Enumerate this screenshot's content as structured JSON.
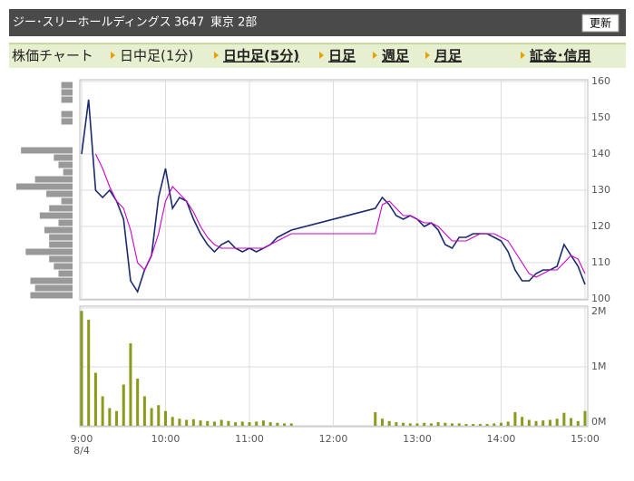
{
  "header": {
    "title": "ジー･スリーホールディングス",
    "code": "3647",
    "market": "東京 2部",
    "button": "更新"
  },
  "tabs": {
    "label": "株価チャート",
    "items": [
      "日中足(1分)",
      "日中足(5分)",
      "日足",
      "週足",
      "月足",
      "証金･信用"
    ]
  },
  "chart_data": [
    {
      "type": "line",
      "x": [
        "9:00",
        "9:05",
        "9:10",
        "9:15",
        "9:20",
        "9:25",
        "9:30",
        "9:35",
        "9:40",
        "9:45",
        "9:50",
        "9:55",
        "10:00",
        "10:05",
        "10:10",
        "10:15",
        "10:20",
        "10:25",
        "10:30",
        "10:35",
        "10:40",
        "10:45",
        "10:50",
        "10:55",
        "11:00",
        "11:05",
        "11:10",
        "11:15",
        "11:20",
        "11:25",
        "11:30",
        "12:30",
        "12:35",
        "12:40",
        "12:45",
        "12:50",
        "12:55",
        "13:00",
        "13:05",
        "13:10",
        "13:15",
        "13:20",
        "13:25",
        "13:30",
        "13:35",
        "13:40",
        "13:45",
        "13:50",
        "13:55",
        "14:00",
        "14:05",
        "14:10",
        "14:15",
        "14:20",
        "14:25",
        "14:30",
        "14:35",
        "14:40",
        "14:45",
        "14:50",
        "14:55",
        "15:00"
      ],
      "series": [
        {
          "color": "#1a2a6c",
          "values": [
            140,
            155,
            130,
            128,
            130,
            127,
            122,
            105,
            102,
            108,
            112,
            128,
            136,
            125,
            128,
            127,
            122,
            118,
            115,
            113,
            115,
            116,
            114,
            113,
            114,
            113,
            114,
            115,
            117,
            118,
            119,
            125,
            128,
            126,
            123,
            122,
            123,
            122,
            120,
            121,
            119,
            115,
            114,
            117,
            117,
            118,
            118,
            118,
            117,
            116,
            113,
            108,
            105,
            105,
            107,
            108,
            108,
            109,
            115,
            112,
            109,
            104
          ]
        },
        {
          "color": "#cc00cc",
          "values": [
            null,
            null,
            140,
            136,
            131,
            127,
            125,
            119,
            110,
            108,
            112,
            118,
            127,
            131,
            129,
            127,
            124,
            120,
            117,
            115,
            114,
            114,
            114,
            114,
            114,
            114,
            114,
            115,
            116,
            117,
            118,
            118,
            126,
            127,
            125,
            123,
            123,
            122,
            121,
            121,
            120,
            118,
            116,
            116,
            116,
            117,
            118,
            118,
            118,
            117,
            116,
            113,
            110,
            107,
            106,
            107,
            108,
            108,
            110,
            112,
            111,
            107
          ]
        }
      ],
      "xlim": [
        "9:00",
        "15:00"
      ],
      "ylim": [
        100,
        160
      ],
      "yticks": [
        100,
        110,
        120,
        130,
        140,
        150,
        160
      ],
      "grid": true
    },
    {
      "type": "bar",
      "x": [
        "9:00",
        "9:05",
        "9:10",
        "9:15",
        "9:20",
        "9:25",
        "9:30",
        "9:35",
        "9:40",
        "9:45",
        "9:50",
        "9:55",
        "10:00",
        "10:05",
        "10:10",
        "10:15",
        "10:20",
        "10:25",
        "10:30",
        "10:35",
        "10:40",
        "10:45",
        "10:50",
        "10:55",
        "11:00",
        "11:05",
        "11:10",
        "11:15",
        "11:20",
        "11:25",
        "11:30",
        "12:30",
        "12:35",
        "12:40",
        "12:45",
        "12:50",
        "12:55",
        "13:00",
        "13:05",
        "13:10",
        "13:15",
        "13:20",
        "13:25",
        "13:30",
        "13:35",
        "13:40",
        "13:45",
        "13:50",
        "13:55",
        "14:00",
        "14:05",
        "14:10",
        "14:15",
        "14:20",
        "14:25",
        "14:30",
        "14:35",
        "14:40",
        "14:45",
        "14:50",
        "14:55",
        "15:00"
      ],
      "values": [
        1950000,
        1800000,
        900000,
        500000,
        300000,
        250000,
        700000,
        1400000,
        800000,
        500000,
        300000,
        350000,
        250000,
        150000,
        120000,
        100000,
        110000,
        90000,
        80000,
        70000,
        100000,
        80000,
        60000,
        70000,
        60000,
        70000,
        90000,
        60000,
        50000,
        40000,
        40000,
        230000,
        120000,
        80000,
        60000,
        50000,
        40000,
        40000,
        50000,
        40000,
        60000,
        50000,
        40000,
        40000,
        30000,
        30000,
        30000,
        30000,
        40000,
        50000,
        70000,
        230000,
        150000,
        100000,
        80000,
        90000,
        100000,
        120000,
        220000,
        130000,
        80000,
        250000
      ],
      "color": "#8a9a1a",
      "xlim": [
        "9:00",
        "15:00"
      ],
      "xticks": [
        "9:00",
        "10:00",
        "11:00",
        "12:00",
        "13:00",
        "14:00",
        "15:00"
      ],
      "date": "8/4",
      "ylim": [
        0,
        2000000
      ],
      "yticks": [
        {
          "value": 0,
          "label": "0M"
        },
        {
          "value": 1000000,
          "label": "1M"
        },
        {
          "value": 2000000,
          "label": "2M"
        }
      ],
      "grid": true
    },
    {
      "type": "barh",
      "levels": [
        101,
        103,
        105,
        107,
        109,
        111,
        113,
        115,
        117,
        119,
        121,
        123,
        125,
        127,
        129,
        131,
        133,
        135,
        137,
        139,
        141,
        143,
        145,
        147,
        149,
        151,
        153,
        155,
        157,
        159
      ],
      "values": [
        45,
        40,
        45,
        15,
        20,
        25,
        50,
        25,
        25,
        30,
        15,
        35,
        25,
        12,
        28,
        60,
        40,
        10,
        15,
        20,
        55,
        0,
        0,
        0,
        12,
        12,
        0,
        12,
        12,
        12
      ],
      "color": "#999999"
    }
  ]
}
